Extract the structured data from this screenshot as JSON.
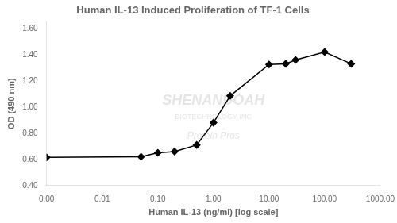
{
  "chart_data": {
    "type": "line",
    "title": "Human IL-13 Induced Proliferation of TF-1 Cells",
    "xlabel": "Human IL-13 (ng/ml) [log scale]",
    "ylabel": "OD (490 nm)",
    "x": [
      0.001,
      0.05,
      0.1,
      0.2,
      0.5,
      1.0,
      2.0,
      10.0,
      20.0,
      30.0,
      100.0,
      300.0
    ],
    "values": [
      0.615,
      0.62,
      0.65,
      0.66,
      0.71,
      0.88,
      1.085,
      1.325,
      1.33,
      1.36,
      1.42,
      1.33
    ],
    "color": "#000000",
    "marker": "diamond",
    "log": "x",
    "grid": false,
    "xlim": [
      0.001,
      1000
    ],
    "xticks": [
      {
        "value": 0.001,
        "label": "0.00"
      },
      0.01,
      {
        "value": 0.1,
        "label": "0.10"
      },
      {
        "value": 1,
        "label": "1.00"
      },
      {
        "value": 10,
        "label": "10.00"
      },
      {
        "value": 100,
        "label": "100.00"
      },
      {
        "value": 1000,
        "label": "1000.00"
      }
    ],
    "ylim": [
      0.4,
      1.65
    ],
    "yticks": [
      {
        "value": 0.4,
        "label": "0.40"
      },
      {
        "value": 0.6,
        "label": "0.60"
      },
      {
        "value": 0.8,
        "label": "0.80"
      },
      {
        "value": 1.0,
        "label": "1.00"
      },
      {
        "value": 1.2,
        "label": "1.20"
      },
      {
        "value": 1.4,
        "label": "1.40"
      },
      {
        "value": 1.6,
        "label": "1.60"
      }
    ],
    "annotations": [
      "SHENANDOAH",
      "BIOTECHNOLOGY INC",
      "Protein Pros"
    ]
  }
}
